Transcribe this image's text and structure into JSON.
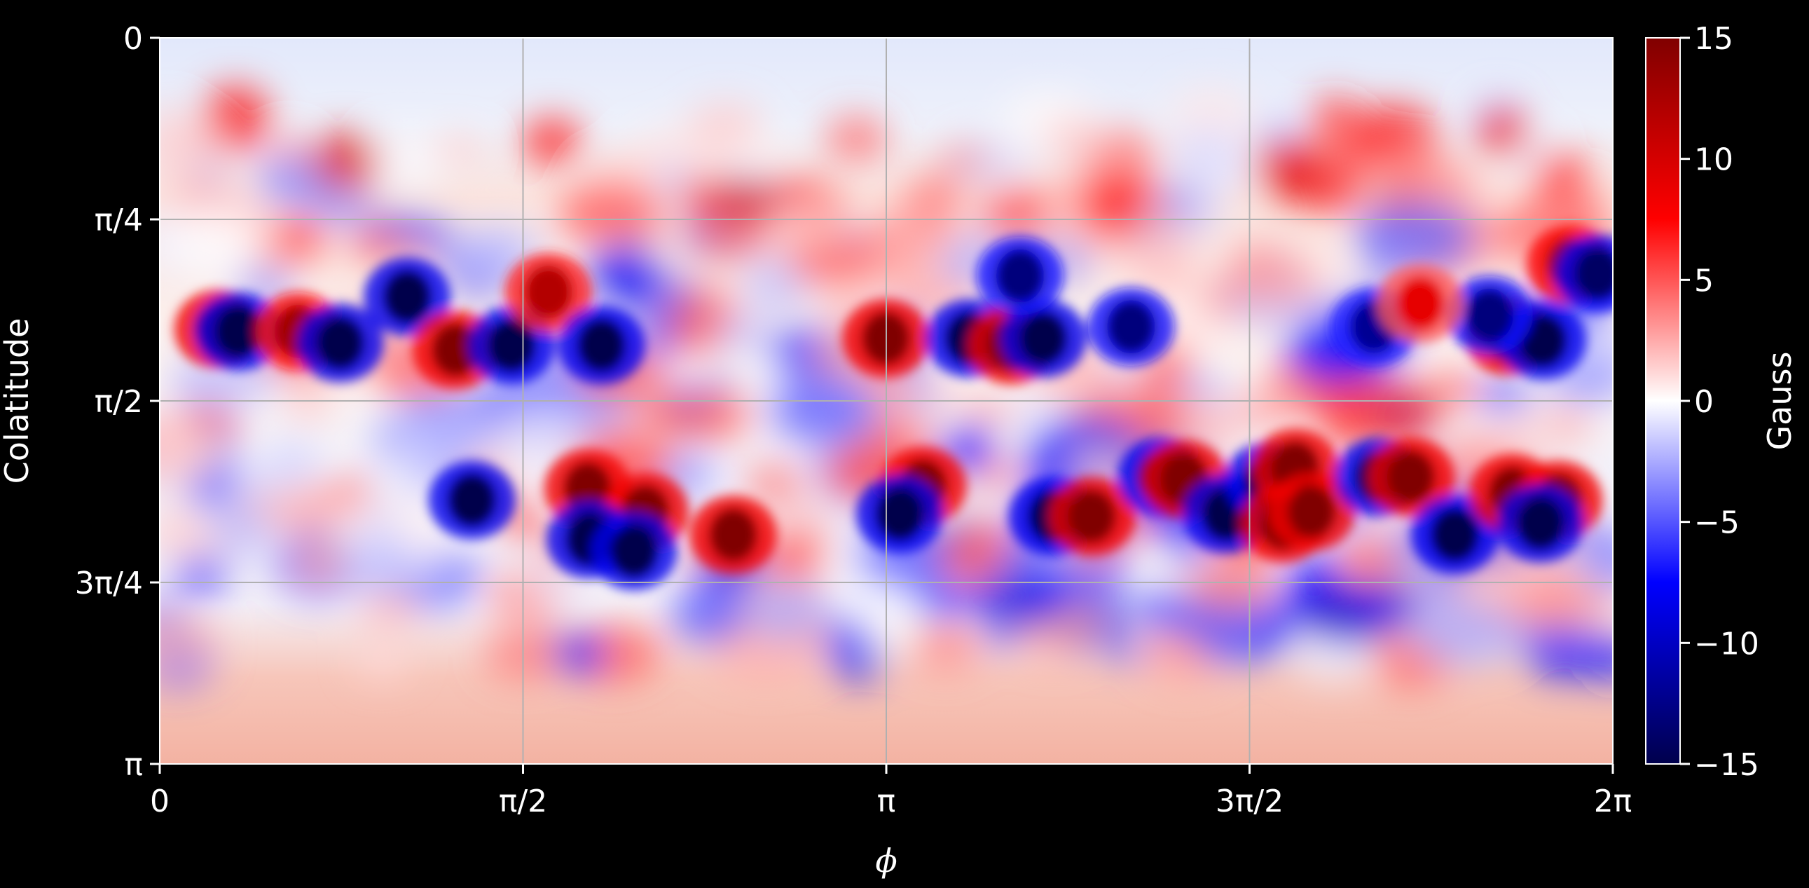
{
  "chart_data": {
    "type": "heatmap",
    "title": "",
    "xlabel": "ϕ",
    "ylabel": "Colatitude",
    "xlim": [
      0,
      6.283185
    ],
    "ylim": [
      0,
      3.141593
    ],
    "y_inverted": true,
    "grid": true,
    "x_ticks": [
      {
        "value": 0,
        "label": "0"
      },
      {
        "value": 1.570796,
        "label": "π/2"
      },
      {
        "value": 3.141593,
        "label": "π"
      },
      {
        "value": 4.712389,
        "label": "3π/2"
      },
      {
        "value": 6.283185,
        "label": "2π"
      }
    ],
    "y_ticks": [
      {
        "value": 0,
        "label": "0"
      },
      {
        "value": 0.785398,
        "label": "π/4"
      },
      {
        "value": 1.570796,
        "label": "π/2"
      },
      {
        "value": 2.356194,
        "label": "3π/4"
      },
      {
        "value": 3.141593,
        "label": "π"
      }
    ],
    "colorbar": {
      "label": "Gauss",
      "range": [
        -15,
        15
      ],
      "colormap": "seismic",
      "ticks": [
        {
          "value": 15,
          "label": "15"
        },
        {
          "value": 10,
          "label": "10"
        },
        {
          "value": 5,
          "label": "5"
        },
        {
          "value": 0,
          "label": "0"
        },
        {
          "value": -5,
          "label": "−5"
        },
        {
          "value": -10,
          "label": "−10"
        },
        {
          "value": -15,
          "label": "−15"
        }
      ]
    },
    "field_features": [
      {
        "phi": 0.25,
        "theta": 1.26,
        "value": 15
      },
      {
        "phi": 0.34,
        "theta": 1.27,
        "value": -15
      },
      {
        "phi": 0.6,
        "theta": 1.27,
        "value": 13
      },
      {
        "phi": 0.78,
        "theta": 1.32,
        "value": -15
      },
      {
        "phi": 1.07,
        "theta": 1.12,
        "value": -15
      },
      {
        "phi": 1.28,
        "theta": 1.35,
        "value": 15
      },
      {
        "phi": 1.52,
        "theta": 1.33,
        "value": -15
      },
      {
        "phi": 1.68,
        "theta": 1.1,
        "value": 12
      },
      {
        "phi": 1.91,
        "theta": 1.33,
        "value": -15
      },
      {
        "phi": 1.35,
        "theta": 2.0,
        "value": -15
      },
      {
        "phi": 1.85,
        "theta": 1.95,
        "value": 15
      },
      {
        "phi": 2.1,
        "theta": 2.05,
        "value": 15
      },
      {
        "phi": 1.86,
        "theta": 2.17,
        "value": -15
      },
      {
        "phi": 2.05,
        "theta": 2.22,
        "value": -15
      },
      {
        "phi": 2.48,
        "theta": 2.15,
        "value": 15
      },
      {
        "phi": 3.14,
        "theta": 1.3,
        "value": 15
      },
      {
        "phi": 3.5,
        "theta": 1.3,
        "value": -15
      },
      {
        "phi": 3.68,
        "theta": 1.33,
        "value": 15
      },
      {
        "phi": 3.82,
        "theta": 1.3,
        "value": -15
      },
      {
        "phi": 3.72,
        "theta": 1.03,
        "value": -13
      },
      {
        "phi": 4.2,
        "theta": 1.25,
        "value": -13
      },
      {
        "phi": 3.3,
        "theta": 1.94,
        "value": 15
      },
      {
        "phi": 3.2,
        "theta": 2.06,
        "value": -15
      },
      {
        "phi": 3.86,
        "theta": 2.07,
        "value": -15
      },
      {
        "phi": 4.03,
        "theta": 2.07,
        "value": 15
      },
      {
        "phi": 4.33,
        "theta": 1.9,
        "value": -15
      },
      {
        "phi": 4.43,
        "theta": 1.91,
        "value": 15
      },
      {
        "phi": 4.61,
        "theta": 2.06,
        "value": -15
      },
      {
        "phi": 4.79,
        "theta": 1.92,
        "value": -15
      },
      {
        "phi": 4.91,
        "theta": 1.86,
        "value": 15
      },
      {
        "phi": 4.86,
        "theta": 2.1,
        "value": 15
      },
      {
        "phi": 4.98,
        "theta": 2.05,
        "value": 15
      },
      {
        "phi": 5.27,
        "theta": 1.9,
        "value": -15
      },
      {
        "phi": 5.41,
        "theta": 1.9,
        "value": 15
      },
      {
        "phi": 5.6,
        "theta": 2.15,
        "value": -15
      },
      {
        "phi": 5.85,
        "theta": 1.97,
        "value": 15
      },
      {
        "phi": 6.05,
        "theta": 2.0,
        "value": 15
      },
      {
        "phi": 5.97,
        "theta": 2.1,
        "value": -15
      },
      {
        "phi": 5.83,
        "theta": 1.29,
        "value": 15
      },
      {
        "phi": 5.98,
        "theta": 1.31,
        "value": -15
      },
      {
        "phi": 5.75,
        "theta": 1.2,
        "value": -13
      },
      {
        "phi": 6.1,
        "theta": 0.98,
        "value": 14
      },
      {
        "phi": 6.22,
        "theta": 1.02,
        "value": -14
      },
      {
        "phi": 5.25,
        "theta": 1.25,
        "value": -12
      },
      {
        "phi": 5.45,
        "theta": 1.15,
        "value": 9
      }
    ]
  }
}
